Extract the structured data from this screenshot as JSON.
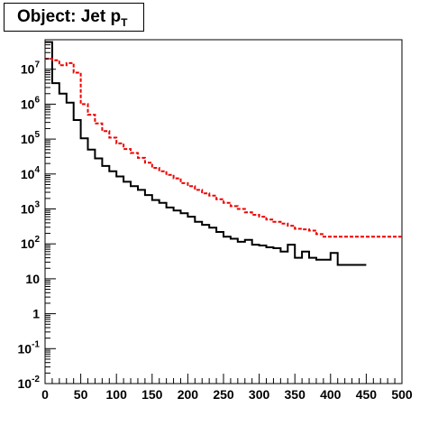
{
  "title": {
    "main": "Object: Jet p",
    "sub": "T"
  },
  "colors": {
    "series_black": "#000000",
    "series_red": "#ee0000",
    "axis": "#000000"
  },
  "chart_data": {
    "type": "line",
    "step": true,
    "x_bin_edges_start": 0,
    "x_bin_width": 10,
    "xlim": [
      0,
      500
    ],
    "ylim": [
      0.01,
      70000000
    ],
    "yscale": "log",
    "grid": false,
    "legend": "none",
    "x_ticks": [
      "0",
      "50",
      "100",
      "150",
      "200",
      "250",
      "300",
      "350",
      "400",
      "450",
      "500"
    ],
    "y_ticks": [
      {
        "value": 0.01,
        "base": "10",
        "exp": "-2"
      },
      {
        "value": 0.1,
        "base": "10",
        "exp": "-1"
      },
      {
        "value": 1,
        "base": "1",
        "exp": ""
      },
      {
        "value": 10,
        "base": "10",
        "exp": ""
      },
      {
        "value": 100,
        "base": "10",
        "exp": "2"
      },
      {
        "value": 1000,
        "base": "10",
        "exp": "3"
      },
      {
        "value": 10000,
        "base": "10",
        "exp": "4"
      },
      {
        "value": 100000,
        "base": "10",
        "exp": "5"
      },
      {
        "value": 1000000,
        "base": "10",
        "exp": "6"
      },
      {
        "value": 10000000,
        "base": "10",
        "exp": "7"
      }
    ],
    "series": [
      {
        "style": "solid",
        "color": "#000000",
        "values": [
          60000000,
          4000000,
          2000000,
          1100000,
          350000,
          105000,
          50000,
          28000,
          17000,
          12000,
          8500,
          6000,
          4500,
          3500,
          2500,
          1800,
          1500,
          1100,
          900,
          750,
          600,
          430,
          350,
          290,
          220,
          160,
          140,
          115,
          130,
          95,
          90,
          80,
          75,
          60,
          95,
          40,
          60,
          40,
          35,
          35,
          55,
          25,
          25,
          25,
          25
        ]
      },
      {
        "style": "dashed",
        "color": "#ee0000",
        "values": [
          20000000,
          18000000,
          13000000,
          15000000,
          8000000,
          1000000,
          500000,
          280000,
          170000,
          110000,
          75000,
          52000,
          40000,
          29000,
          21000,
          15000,
          12000,
          9500,
          7500,
          5500,
          4500,
          3500,
          2800,
          2400,
          1900,
          1500,
          1200,
          1000,
          800,
          680,
          600,
          500,
          430,
          380,
          330,
          270,
          260,
          240,
          190,
          160,
          160,
          160,
          160,
          160,
          160,
          160,
          160,
          160,
          160,
          160
        ]
      }
    ]
  }
}
